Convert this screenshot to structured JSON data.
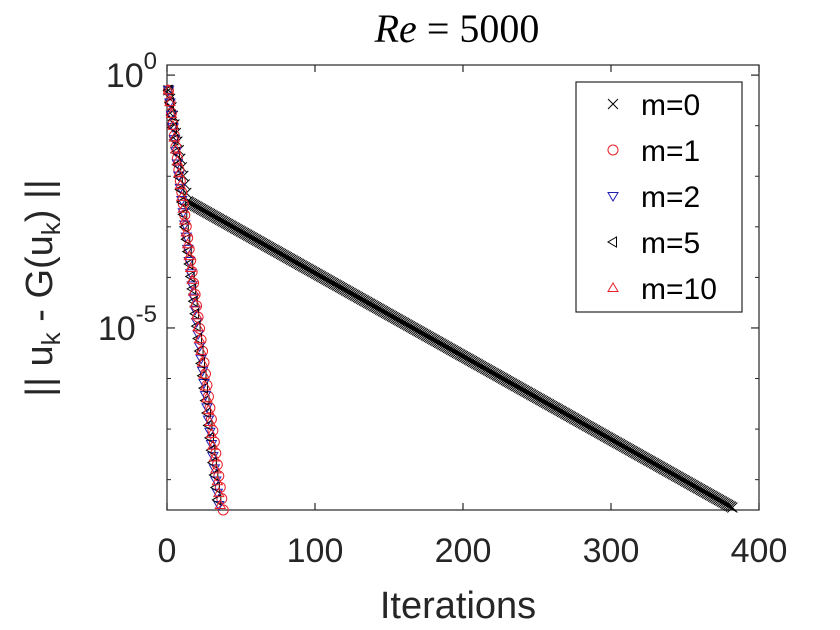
{
  "chart_data": {
    "type": "scatter",
    "title": {
      "lhs": "Re",
      "eq": "=",
      "rhs": "5000"
    },
    "xlabel": "Iterations",
    "ylabel": {
      "pre": "|| u",
      "sub1": "k",
      "mid": " - G(u",
      "sub2": "k",
      "post": ") ||"
    },
    "xlim": [
      0,
      400
    ],
    "ylim_log10": [
      -8.6,
      0.2
    ],
    "y_scale": "log",
    "x_ticks": [
      0,
      100,
      200,
      300,
      400
    ],
    "x_tick_labels": [
      "0",
      "100",
      "200",
      "300",
      "400"
    ],
    "y_ticks_log10": [
      0,
      -5
    ],
    "y_tick_labels": [
      {
        "base": "10",
        "exp": "0"
      },
      {
        "base": "10",
        "exp": "-5"
      }
    ],
    "legend": {
      "placement": "top-right"
    },
    "series": [
      {
        "name": "m=0",
        "marker": "x",
        "color": "#000000",
        "segments": [
          {
            "x_start": 1,
            "x_end": 14,
            "log10_start": -0.3,
            "log10_end": -2.5
          },
          {
            "x_start": 14,
            "x_end": 382,
            "log10_start": -2.5,
            "log10_end": -8.55
          }
        ]
      },
      {
        "name": "m=1",
        "marker": "circle",
        "color": "#e8202a",
        "segments": [
          {
            "x_start": 1,
            "x_end": 38,
            "log10_start": -0.3,
            "log10_end": -8.6
          }
        ]
      },
      {
        "name": "m=2",
        "marker": "triangle-down",
        "color": "#1f1fb4",
        "segments": [
          {
            "x_start": 1,
            "x_end": 35,
            "log10_start": -0.3,
            "log10_end": -8.5
          }
        ]
      },
      {
        "name": "m=5",
        "marker": "triangle-left",
        "color": "#000000",
        "segments": [
          {
            "x_start": 1,
            "x_end": 34,
            "log10_start": -0.3,
            "log10_end": -8.4
          }
        ]
      },
      {
        "name": "m=10",
        "marker": "triangle-up",
        "color": "#e8202a",
        "segments": [
          {
            "x_start": 1,
            "x_end": 36,
            "log10_start": -0.3,
            "log10_end": -8.5
          }
        ]
      }
    ]
  }
}
